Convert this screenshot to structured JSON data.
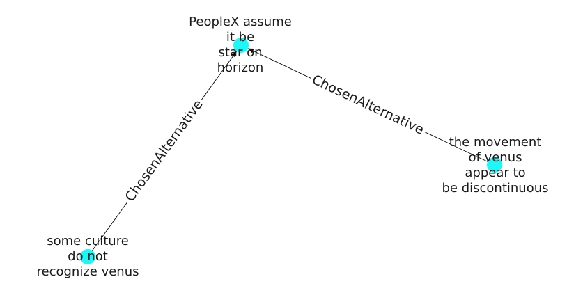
{
  "graph": {
    "node_color": "#1ff7f7",
    "edge_color": "#000000",
    "nodes": [
      {
        "id": "n1",
        "lines": [
          "PeopleX assume",
          "it be",
          "star on",
          "horizon"
        ]
      },
      {
        "id": "n2",
        "lines": [
          "the movement",
          "of venus",
          "appear to",
          "be discontinuous"
        ]
      },
      {
        "id": "n3",
        "lines": [
          "some culture",
          "do not",
          "recognize venus"
        ]
      }
    ],
    "edges": [
      {
        "from": "n2",
        "to": "n1",
        "label": "ChosenAlternative"
      },
      {
        "from": "n3",
        "to": "n1",
        "label": "ChosenAlternative"
      }
    ]
  }
}
